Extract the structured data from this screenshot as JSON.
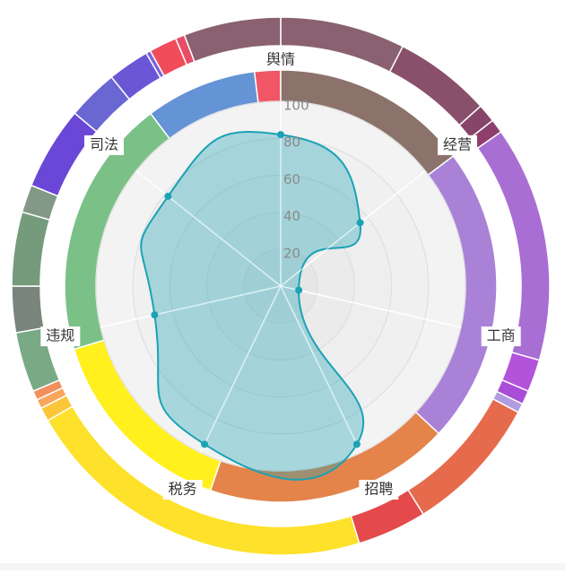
{
  "chart_data": {
    "type": "radar",
    "radial_ticks": [
      "20",
      "40",
      "60",
      "80",
      "100"
    ],
    "rmax": 100,
    "indicators": [
      "舆情",
      "经营",
      "工商",
      "招聘",
      "税务",
      "违规",
      "司法"
    ],
    "series": [
      {
        "values": [
          82,
          55,
          10,
          95,
          95,
          70,
          78
        ],
        "color": "#1ba2b5"
      }
    ],
    "inner_ring": [
      {
        "start": -7,
        "end": 0,
        "color": "#f05664"
      },
      {
        "start": 0,
        "end": 53,
        "color": "#8b736b"
      },
      {
        "start": 53,
        "end": 133,
        "color": "#a982d7"
      },
      {
        "start": 133,
        "end": 199,
        "color": "#e4844b"
      },
      {
        "start": 199,
        "end": 253,
        "color": "#fff01e"
      },
      {
        "start": 253,
        "end": 323,
        "color": "#7bc187"
      },
      {
        "start": 323,
        "end": 353,
        "color": "#6493d6"
      }
    ],
    "outer_ring": [
      {
        "start": 0,
        "end": 27,
        "color": "#896170"
      },
      {
        "start": 27,
        "end": 48,
        "color": "#88506a"
      },
      {
        "start": 48,
        "end": 52,
        "color": "#87456b"
      },
      {
        "start": 52,
        "end": 55,
        "color": "#8e3e6c"
      },
      {
        "start": 55,
        "end": 106,
        "color": "#a86ed4"
      },
      {
        "start": 106,
        "end": 113,
        "color": "#b253da"
      },
      {
        "start": 113,
        "end": 116,
        "color": "#a94dd8"
      },
      {
        "start": 116,
        "end": 118,
        "color": "#b19be1"
      },
      {
        "start": 118,
        "end": 148,
        "color": "#e66b4c"
      },
      {
        "start": 148,
        "end": 163,
        "color": "#e4494b"
      },
      {
        "start": 163,
        "end": 240,
        "color": "#fee12a"
      },
      {
        "start": 240,
        "end": 243,
        "color": "#fbc637"
      },
      {
        "start": 243,
        "end": 245,
        "color": "#f9a55d"
      },
      {
        "start": 245,
        "end": 247,
        "color": "#f28f5e"
      },
      {
        "start": 247,
        "end": 260,
        "color": "#79a985"
      },
      {
        "start": 260,
        "end": 270,
        "color": "#79857c"
      },
      {
        "start": 270,
        "end": 286,
        "color": "#759b7c"
      },
      {
        "start": 286,
        "end": 292,
        "color": "#819985"
      },
      {
        "start": 292,
        "end": 310,
        "color": "#6a47d6"
      },
      {
        "start": 310,
        "end": 321,
        "color": "#6a67d3"
      },
      {
        "start": 321,
        "end": 330,
        "color": "#6b57d6"
      },
      {
        "start": 330,
        "end": 331,
        "color": "#7b63de"
      },
      {
        "start": 331,
        "end": 337,
        "color": "#f04c5a"
      },
      {
        "start": 337,
        "end": 339,
        "color": "#e64e68"
      },
      {
        "start": 339,
        "end": 360,
        "color": "#896170"
      }
    ]
  }
}
